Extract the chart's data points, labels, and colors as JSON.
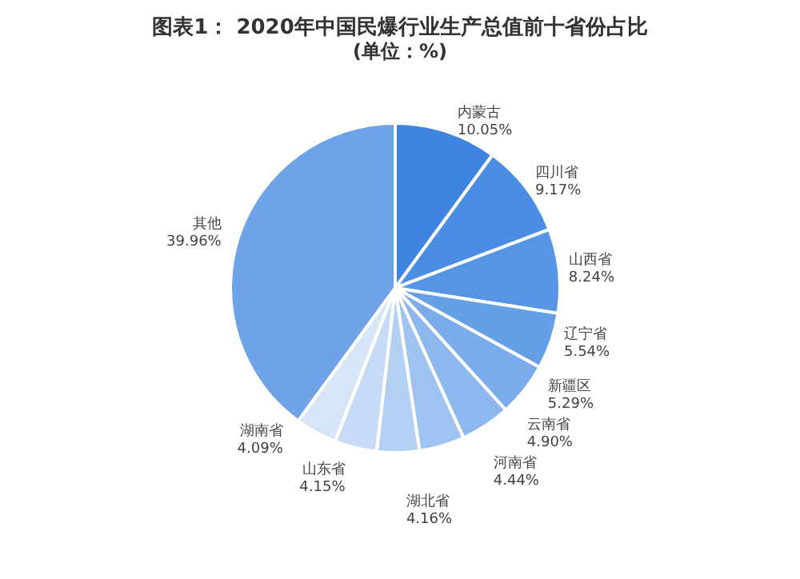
{
  "chart_data": {
    "type": "pie",
    "title": "图表1： 2020年中国民爆行业生产总值前十省份占比",
    "subtitle": "(单位：%)",
    "categories": [
      "内蒙古",
      "四川省",
      "山西省",
      "辽宁省",
      "新疆区",
      "云南省",
      "河南省",
      "湖北省",
      "山东省",
      "湖南省",
      "其他"
    ],
    "values": [
      10.05,
      9.17,
      8.24,
      5.54,
      5.29,
      4.9,
      4.44,
      4.16,
      4.15,
      4.09,
      39.96
    ],
    "value_labels": [
      "10.05%",
      "9.17%",
      "8.24%",
      "5.54%",
      "5.29%",
      "4.90%",
      "4.44%",
      "4.16%",
      "4.15%",
      "4.09%",
      "39.96%"
    ],
    "colors": [
      "#3f84e0",
      "#4a8de2",
      "#5595e3",
      "#65a0e6",
      "#7aaceb",
      "#8cb8ee",
      "#9fc3f0",
      "#b3d0f3",
      "#c5dbf6",
      "#d6e5f8",
      "#6ea3e8"
    ],
    "legend": false
  }
}
